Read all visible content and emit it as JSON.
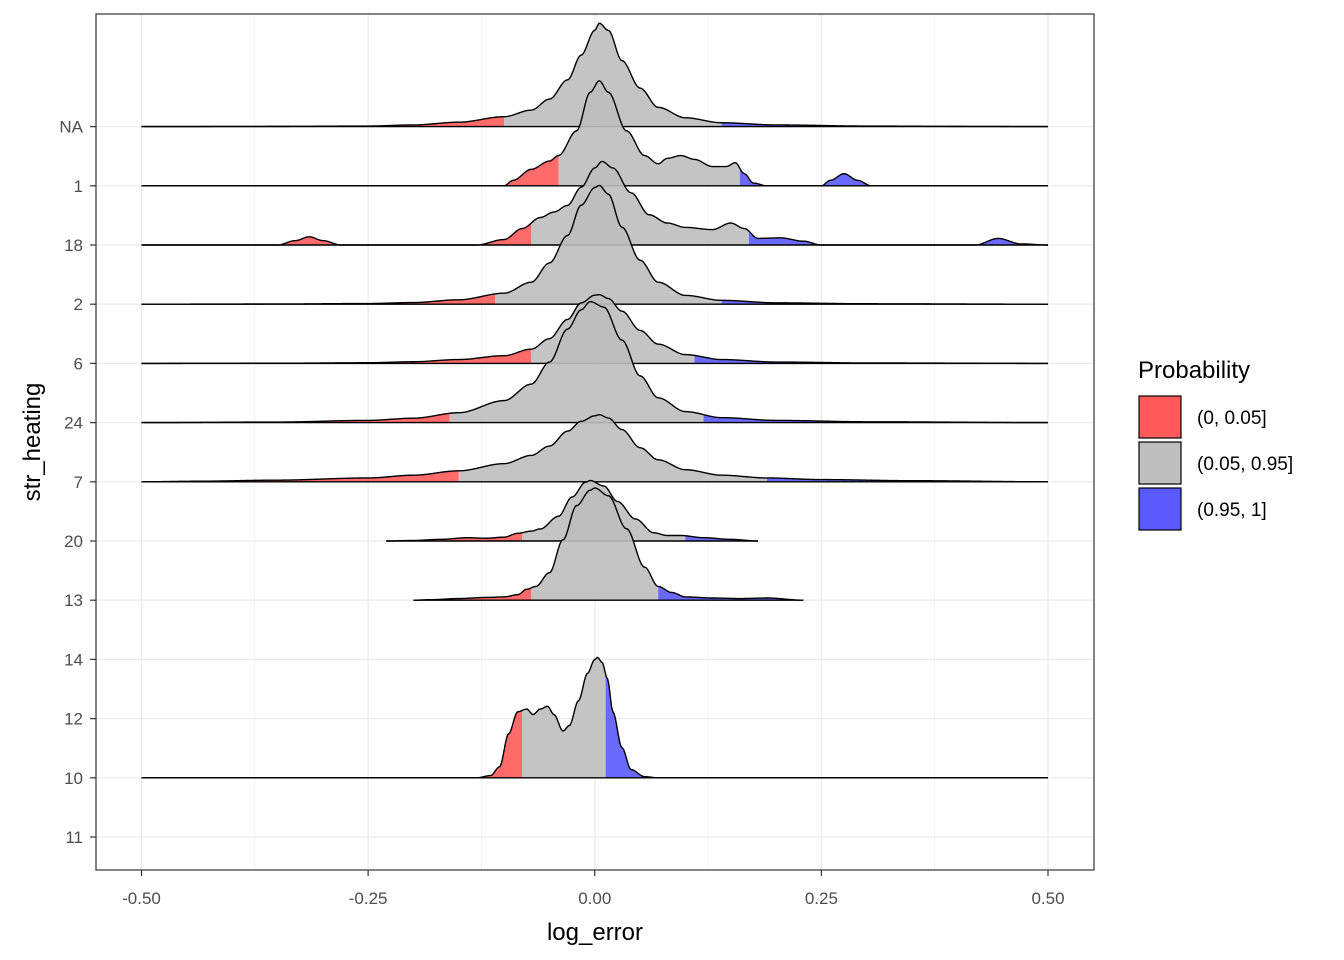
{
  "chart_data": {
    "type": "area",
    "subtype": "ridgeline-density",
    "xlabel": "log_error",
    "ylabel": "str_heating",
    "xlim": [
      -0.5,
      0.5
    ],
    "x_ticks": [
      -0.5,
      -0.25,
      0.0,
      0.25,
      0.5
    ],
    "x_tick_labels": [
      "-0.50",
      "-0.25",
      "0.00",
      "0.25",
      "0.50"
    ],
    "categories": [
      "11",
      "10",
      "12",
      "14",
      "13",
      "20",
      "7",
      "24",
      "6",
      "2",
      "18",
      "1",
      "NA"
    ],
    "grid": true,
    "legend": {
      "title": "Probability",
      "position": "right",
      "entries": [
        {
          "label": "(0, 0.05]",
          "color": "#ff5a5a"
        },
        {
          "label": "(0.05, 0.95]",
          "color": "#bebebe"
        },
        {
          "label": "(0.95, 1]",
          "color": "#5a5aff"
        }
      ]
    },
    "series": [
      {
        "category": "NA",
        "range": [
          -0.5,
          0.5
        ],
        "q05": -0.1,
        "q95": 0.14,
        "height": 1.88,
        "points": [
          [
            -0.5,
            0
          ],
          [
            -0.35,
            0.004
          ],
          [
            -0.25,
            0.01
          ],
          [
            -0.2,
            0.03
          ],
          [
            -0.15,
            0.08
          ],
          [
            -0.1,
            0.18
          ],
          [
            -0.07,
            0.3
          ],
          [
            -0.05,
            0.5
          ],
          [
            -0.03,
            0.85
          ],
          [
            -0.015,
            1.3
          ],
          [
            0,
            1.75
          ],
          [
            0.005,
            1.88
          ],
          [
            0.015,
            1.75
          ],
          [
            0.03,
            1.2
          ],
          [
            0.05,
            0.7
          ],
          [
            0.07,
            0.35
          ],
          [
            0.1,
            0.16
          ],
          [
            0.14,
            0.07
          ],
          [
            0.2,
            0.03
          ],
          [
            0.3,
            0.01
          ],
          [
            0.4,
            0.004
          ],
          [
            0.5,
            0
          ]
        ]
      },
      {
        "category": "1",
        "range": [
          -0.5,
          0.5
        ],
        "q05": -0.04,
        "q95": 0.16,
        "height": 1.91,
        "points": [
          [
            -0.5,
            0
          ],
          [
            -0.1,
            0
          ],
          [
            -0.09,
            0.1
          ],
          [
            -0.07,
            0.3
          ],
          [
            -0.05,
            0.45
          ],
          [
            -0.04,
            0.55
          ],
          [
            -0.02,
            1.0
          ],
          [
            -0.005,
            1.7
          ],
          [
            0.005,
            1.91
          ],
          [
            0.015,
            1.7
          ],
          [
            0.035,
            1.0
          ],
          [
            0.055,
            0.55
          ],
          [
            0.07,
            0.4
          ],
          [
            0.08,
            0.5
          ],
          [
            0.095,
            0.55
          ],
          [
            0.11,
            0.48
          ],
          [
            0.13,
            0.35
          ],
          [
            0.145,
            0.35
          ],
          [
            0.155,
            0.42
          ],
          [
            0.165,
            0.22
          ],
          [
            0.175,
            0.05
          ],
          [
            0.19,
            0
          ],
          [
            0.25,
            0
          ],
          [
            0.26,
            0.1
          ],
          [
            0.275,
            0.22
          ],
          [
            0.29,
            0.1
          ],
          [
            0.305,
            0
          ],
          [
            0.5,
            0
          ]
        ]
      },
      {
        "category": "18",
        "range": [
          -0.5,
          0.5
        ],
        "q05": -0.07,
        "q95": 0.17,
        "height": 1.52,
        "points": [
          [
            -0.5,
            0
          ],
          [
            -0.35,
            0
          ],
          [
            -0.33,
            0.08
          ],
          [
            -0.315,
            0.15
          ],
          [
            -0.3,
            0.08
          ],
          [
            -0.28,
            0
          ],
          [
            -0.13,
            0
          ],
          [
            -0.1,
            0.1
          ],
          [
            -0.08,
            0.3
          ],
          [
            -0.06,
            0.5
          ],
          [
            -0.045,
            0.6
          ],
          [
            -0.03,
            0.72
          ],
          [
            -0.015,
            1.05
          ],
          [
            0,
            1.4
          ],
          [
            0.008,
            1.52
          ],
          [
            0.02,
            1.4
          ],
          [
            0.04,
            0.95
          ],
          [
            0.06,
            0.55
          ],
          [
            0.08,
            0.4
          ],
          [
            0.1,
            0.32
          ],
          [
            0.13,
            0.28
          ],
          [
            0.15,
            0.4
          ],
          [
            0.165,
            0.3
          ],
          [
            0.18,
            0.12
          ],
          [
            0.205,
            0.13
          ],
          [
            0.23,
            0.07
          ],
          [
            0.25,
            0
          ],
          [
            0.42,
            0
          ],
          [
            0.445,
            0.12
          ],
          [
            0.47,
            0.02
          ],
          [
            0.5,
            0
          ]
        ]
      },
      {
        "category": "2",
        "range": [
          -0.5,
          0.5
        ],
        "q05": -0.11,
        "q95": 0.14,
        "height": 2.16,
        "points": [
          [
            -0.5,
            0
          ],
          [
            -0.35,
            0.004
          ],
          [
            -0.25,
            0.012
          ],
          [
            -0.2,
            0.03
          ],
          [
            -0.15,
            0.08
          ],
          [
            -0.1,
            0.2
          ],
          [
            -0.07,
            0.4
          ],
          [
            -0.05,
            0.75
          ],
          [
            -0.03,
            1.25
          ],
          [
            -0.015,
            1.8
          ],
          [
            0,
            2.12
          ],
          [
            0.005,
            2.16
          ],
          [
            0.015,
            2.0
          ],
          [
            0.03,
            1.4
          ],
          [
            0.05,
            0.8
          ],
          [
            0.07,
            0.4
          ],
          [
            0.1,
            0.16
          ],
          [
            0.14,
            0.07
          ],
          [
            0.2,
            0.025
          ],
          [
            0.3,
            0.008
          ],
          [
            0.5,
            0
          ]
        ]
      },
      {
        "category": "6",
        "range": [
          -0.5,
          0.5
        ],
        "q05": -0.07,
        "q95": 0.11,
        "height": 1.25,
        "points": [
          [
            -0.5,
            0
          ],
          [
            -0.35,
            0.003
          ],
          [
            -0.25,
            0.012
          ],
          [
            -0.2,
            0.03
          ],
          [
            -0.15,
            0.07
          ],
          [
            -0.1,
            0.14
          ],
          [
            -0.07,
            0.26
          ],
          [
            -0.05,
            0.45
          ],
          [
            -0.03,
            0.8
          ],
          [
            -0.015,
            1.1
          ],
          [
            0,
            1.24
          ],
          [
            0.005,
            1.25
          ],
          [
            0.015,
            1.18
          ],
          [
            0.03,
            0.95
          ],
          [
            0.05,
            0.6
          ],
          [
            0.07,
            0.35
          ],
          [
            0.1,
            0.16
          ],
          [
            0.14,
            0.07
          ],
          [
            0.2,
            0.025
          ],
          [
            0.3,
            0.008
          ],
          [
            0.5,
            0
          ]
        ]
      },
      {
        "category": "24",
        "range": [
          -0.5,
          0.5
        ],
        "q05": -0.16,
        "q95": 0.12,
        "height": 2.2,
        "points": [
          [
            -0.5,
            0
          ],
          [
            -0.35,
            0.01
          ],
          [
            -0.25,
            0.04
          ],
          [
            -0.2,
            0.08
          ],
          [
            -0.15,
            0.18
          ],
          [
            -0.1,
            0.4
          ],
          [
            -0.07,
            0.7
          ],
          [
            -0.05,
            1.1
          ],
          [
            -0.03,
            1.7
          ],
          [
            -0.015,
            2.05
          ],
          [
            -0.005,
            2.2
          ],
          [
            0.01,
            2.1
          ],
          [
            0.03,
            1.5
          ],
          [
            0.05,
            0.85
          ],
          [
            0.07,
            0.45
          ],
          [
            0.1,
            0.2
          ],
          [
            0.14,
            0.09
          ],
          [
            0.2,
            0.04
          ],
          [
            0.3,
            0.015
          ],
          [
            0.5,
            0
          ]
        ]
      },
      {
        "category": "7",
        "range": [
          -0.5,
          0.5
        ],
        "q05": -0.15,
        "q95": 0.19,
        "height": 1.22,
        "points": [
          [
            -0.5,
            0
          ],
          [
            -0.44,
            0.01
          ],
          [
            -0.35,
            0.03
          ],
          [
            -0.25,
            0.07
          ],
          [
            -0.2,
            0.12
          ],
          [
            -0.15,
            0.2
          ],
          [
            -0.1,
            0.33
          ],
          [
            -0.07,
            0.48
          ],
          [
            -0.05,
            0.65
          ],
          [
            -0.03,
            0.92
          ],
          [
            -0.015,
            1.1
          ],
          [
            0,
            1.2
          ],
          [
            0.005,
            1.22
          ],
          [
            0.015,
            1.16
          ],
          [
            0.03,
            0.95
          ],
          [
            0.05,
            0.62
          ],
          [
            0.07,
            0.4
          ],
          [
            0.1,
            0.22
          ],
          [
            0.14,
            0.12
          ],
          [
            0.19,
            0.07
          ],
          [
            0.25,
            0.04
          ],
          [
            0.35,
            0.02
          ],
          [
            0.5,
            0
          ]
        ]
      },
      {
        "category": "20",
        "range": [
          -0.23,
          0.18
        ],
        "q05": -0.08,
        "q95": 0.1,
        "height": 1.1,
        "points": [
          [
            -0.23,
            0
          ],
          [
            -0.2,
            0.01
          ],
          [
            -0.17,
            0.03
          ],
          [
            -0.14,
            0.06
          ],
          [
            -0.12,
            0.05
          ],
          [
            -0.1,
            0.07
          ],
          [
            -0.085,
            0.14
          ],
          [
            -0.07,
            0.18
          ],
          [
            -0.06,
            0.22
          ],
          [
            -0.04,
            0.45
          ],
          [
            -0.025,
            0.8
          ],
          [
            -0.01,
            1.07
          ],
          [
            -0.005,
            1.1
          ],
          [
            0.01,
            1.0
          ],
          [
            0.025,
            0.72
          ],
          [
            0.045,
            0.4
          ],
          [
            0.065,
            0.15
          ],
          [
            0.08,
            0.1
          ],
          [
            0.095,
            0.1
          ],
          [
            0.12,
            0.06
          ],
          [
            0.15,
            0.03
          ],
          [
            0.18,
            0
          ],
          [
            0.5,
            0
          ]
        ]
      },
      {
        "category": "13",
        "range": [
          -0.2,
          0.23
        ],
        "q05": -0.07,
        "q95": 0.07,
        "height": 2.04,
        "points": [
          [
            -0.2,
            0
          ],
          [
            -0.18,
            0.01
          ],
          [
            -0.15,
            0.03
          ],
          [
            -0.12,
            0.05
          ],
          [
            -0.1,
            0.06
          ],
          [
            -0.085,
            0.1
          ],
          [
            -0.075,
            0.2
          ],
          [
            -0.065,
            0.25
          ],
          [
            -0.05,
            0.5
          ],
          [
            -0.035,
            1.1
          ],
          [
            -0.02,
            1.72
          ],
          [
            -0.005,
            2.0
          ],
          [
            0,
            2.04
          ],
          [
            0.015,
            1.9
          ],
          [
            0.035,
            1.3
          ],
          [
            0.055,
            0.6
          ],
          [
            0.07,
            0.25
          ],
          [
            0.085,
            0.14
          ],
          [
            0.1,
            0.06
          ],
          [
            0.13,
            0.04
          ],
          [
            0.16,
            0.03
          ],
          [
            0.19,
            0.04
          ],
          [
            0.23,
            0
          ],
          [
            0.5,
            0
          ]
        ]
      },
      {
        "category": "10",
        "range": [
          -0.5,
          0.5
        ],
        "q05": -0.08,
        "q95": 0.012,
        "height": 2.19,
        "points": [
          [
            -0.5,
            0
          ],
          [
            -0.13,
            0
          ],
          [
            -0.115,
            0.04
          ],
          [
            -0.105,
            0.2
          ],
          [
            -0.095,
            0.8
          ],
          [
            -0.085,
            1.2
          ],
          [
            -0.075,
            1.25
          ],
          [
            -0.068,
            1.15
          ],
          [
            -0.06,
            1.25
          ],
          [
            -0.052,
            1.3
          ],
          [
            -0.045,
            1.15
          ],
          [
            -0.035,
            0.85
          ],
          [
            -0.028,
            0.95
          ],
          [
            -0.018,
            1.4
          ],
          [
            -0.008,
            1.9
          ],
          [
            0,
            2.15
          ],
          [
            0.003,
            2.19
          ],
          [
            0.008,
            2.1
          ],
          [
            0.014,
            1.8
          ],
          [
            0.02,
            1.2
          ],
          [
            0.03,
            0.55
          ],
          [
            0.04,
            0.15
          ],
          [
            0.055,
            0.02
          ],
          [
            0.07,
            0
          ],
          [
            0.5,
            0
          ]
        ]
      }
    ]
  }
}
